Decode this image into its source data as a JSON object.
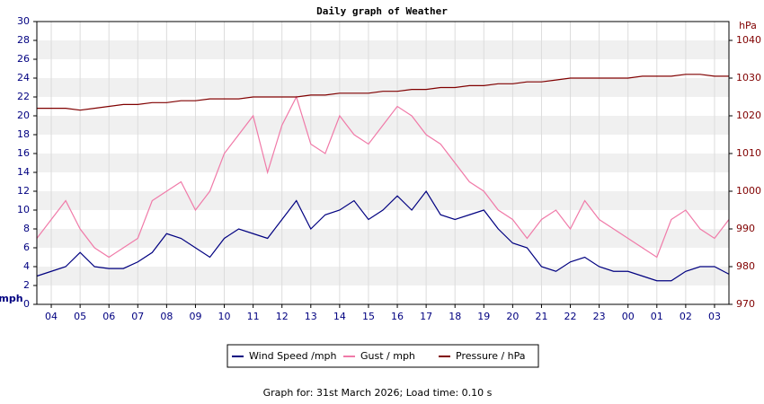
{
  "chart_data": {
    "type": "line",
    "title": "Daily graph of Weather",
    "y_label": "mph",
    "y2_label": "hPa",
    "footer": "Graph for: 31st March 2026; Load time: 0.10 s",
    "categories": [
      null,
      "04",
      null,
      "05",
      null,
      "06",
      null,
      "07",
      null,
      "08",
      null,
      "09",
      null,
      "10",
      null,
      "11",
      null,
      "12",
      null,
      "13",
      null,
      "14",
      null,
      "15",
      null,
      "16",
      null,
      "17",
      null,
      "18",
      null,
      "19",
      null,
      "20",
      null,
      "21",
      null,
      "22",
      null,
      "23",
      null,
      "00",
      null,
      "01",
      null,
      "02",
      null,
      "03",
      null
    ],
    "series": [
      {
        "name": "Wind Speed /mph",
        "color": "#000080",
        "values": [
          3,
          3.5,
          4,
          5.5,
          4,
          3.8,
          3.8,
          4.5,
          5.5,
          7.5,
          7,
          6,
          5,
          7,
          8,
          7.5,
          7,
          9,
          11,
          8,
          9.5,
          10,
          11,
          9,
          10,
          11.5,
          10,
          12,
          9.5,
          9,
          9.5,
          10,
          8,
          6.5,
          6,
          4,
          3.5,
          4.5,
          5,
          4,
          3.5,
          3.5,
          3,
          2.5,
          2.5,
          3.5,
          4,
          4,
          3.2
        ]
      },
      {
        "name": "Gust / mph",
        "color": "#f07aa8",
        "values": [
          7,
          9,
          11,
          8,
          6,
          5,
          6,
          7,
          11,
          12,
          13,
          10,
          12,
          16,
          18,
          20,
          14,
          19,
          22,
          17,
          16,
          20,
          18,
          17,
          19,
          21,
          20,
          18,
          17,
          15,
          13,
          12,
          10,
          9,
          7,
          9,
          10,
          8,
          11,
          9,
          8,
          7,
          6,
          5,
          9,
          10,
          8,
          7,
          9
        ]
      },
      {
        "name": "Pressure / hPa",
        "color": "#800000",
        "axis": "y2",
        "values": [
          1022,
          1022,
          1022,
          1021.5,
          1022,
          1022.5,
          1023,
          1023,
          1023.5,
          1023.5,
          1024,
          1024,
          1024.5,
          1024.5,
          1024.5,
          1025,
          1025,
          1025,
          1025,
          1025.5,
          1025.5,
          1026,
          1026,
          1026,
          1026.5,
          1026.5,
          1027,
          1027,
          1027.5,
          1027.5,
          1028,
          1028,
          1028.5,
          1028.5,
          1029,
          1029,
          1029.5,
          1030,
          1030,
          1030,
          1030,
          1030,
          1030.5,
          1030.5,
          1030.5,
          1031,
          1031,
          1030.5,
          1030.5
        ]
      }
    ],
    "ylim": [
      0,
      30
    ],
    "yticks": [
      0,
      2,
      4,
      6,
      8,
      10,
      12,
      14,
      16,
      18,
      20,
      22,
      24,
      26,
      28,
      30
    ],
    "y2lim": [
      970,
      1045
    ],
    "y2ticks": [
      970,
      980,
      990,
      1000,
      1010,
      1020,
      1030,
      1040
    ],
    "grid": true,
    "legend": "bottom"
  }
}
